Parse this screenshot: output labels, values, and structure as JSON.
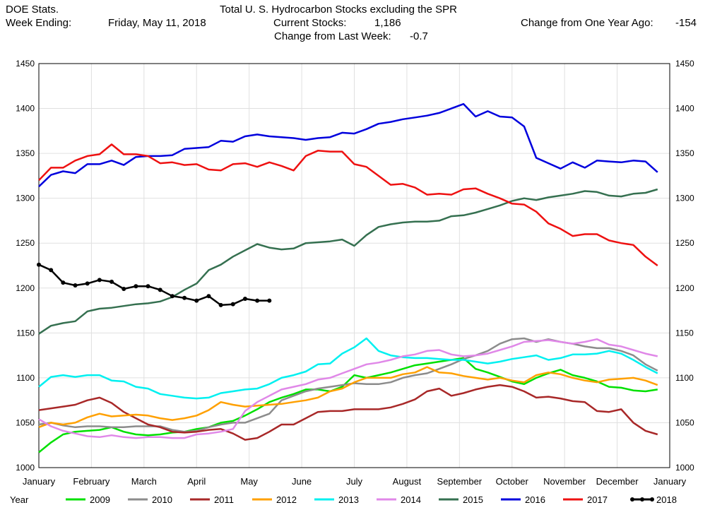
{
  "header": {
    "source": "DOE Stats.",
    "week_label": "Week Ending:",
    "week_value": "Friday, May 11, 2018",
    "title": "Total U. S. Hydrocarbon Stocks excluding the SPR",
    "current_label": "Current Stocks:",
    "current_value": "1,186",
    "yoy_label": "Change from One Year Ago:",
    "yoy_value": "-154",
    "wow_label": "Change from Last Week:",
    "wow_value": "-0.7"
  },
  "legend_title": "Year",
  "chart_data": {
    "type": "line",
    "ylim": [
      1000,
      1450
    ],
    "yticks": [
      1000,
      1050,
      1100,
      1150,
      1200,
      1250,
      1300,
      1350,
      1400,
      1450
    ],
    "xlim": [
      0,
      52
    ],
    "months": [
      "January",
      "February",
      "March",
      "April",
      "May",
      "June",
      "July",
      "August",
      "September",
      "October",
      "November",
      "December",
      "January"
    ],
    "grid": true,
    "legend_position": "bottom",
    "series": [
      {
        "name": "2009",
        "color": "#00e000",
        "markers": false,
        "x": [
          0,
          1,
          2,
          3,
          4,
          5,
          6,
          7,
          8,
          9,
          10,
          11,
          12,
          13,
          14,
          15,
          16,
          17,
          18,
          19,
          20,
          21,
          22,
          23,
          24,
          25,
          26,
          27,
          28,
          29,
          30,
          31,
          32,
          33,
          34,
          35,
          36,
          37,
          38,
          39,
          40,
          41,
          42,
          43,
          44,
          45,
          46,
          47,
          48,
          49,
          50,
          51
        ],
        "values": [
          1017,
          1028,
          1037,
          1040,
          1041,
          1042,
          1045,
          1040,
          1037,
          1036,
          1037,
          1039,
          1040,
          1043,
          1045,
          1050,
          1052,
          1058,
          1065,
          1073,
          1078,
          1082,
          1087,
          1087,
          1085,
          1090,
          1103,
          1100,
          1103,
          1106,
          1110,
          1114,
          1116,
          1118,
          1120,
          1122,
          1110,
          1106,
          1101,
          1096,
          1093,
          1100,
          1105,
          1109,
          1103,
          1100,
          1096,
          1090,
          1089,
          1086,
          1085,
          1087
        ]
      },
      {
        "name": "2010",
        "color": "#8c8c8c",
        "markers": false,
        "x": [
          0,
          1,
          2,
          3,
          4,
          5,
          6,
          7,
          8,
          9,
          10,
          11,
          12,
          13,
          14,
          15,
          16,
          17,
          18,
          19,
          20,
          21,
          22,
          23,
          24,
          25,
          26,
          27,
          28,
          29,
          30,
          31,
          32,
          33,
          34,
          35,
          36,
          37,
          38,
          39,
          40,
          41,
          42,
          43,
          44,
          45,
          46,
          47,
          48,
          49,
          50,
          51
        ],
        "values": [
          1048,
          1050,
          1047,
          1045,
          1046,
          1046,
          1045,
          1045,
          1046,
          1046,
          1046,
          1042,
          1040,
          1041,
          1045,
          1048,
          1050,
          1050,
          1055,
          1060,
          1075,
          1080,
          1085,
          1088,
          1090,
          1092,
          1094,
          1093,
          1093,
          1095,
          1100,
          1103,
          1105,
          1110,
          1115,
          1121,
          1125,
          1130,
          1138,
          1143,
          1144,
          1140,
          1143,
          1140,
          1138,
          1135,
          1133,
          1133,
          1130,
          1125,
          1115,
          1108
        ]
      },
      {
        "name": "2011",
        "color": "#a82828",
        "markers": false,
        "x": [
          0,
          1,
          2,
          3,
          4,
          5,
          6,
          7,
          8,
          9,
          10,
          11,
          12,
          13,
          14,
          15,
          16,
          17,
          18,
          19,
          20,
          21,
          22,
          23,
          24,
          25,
          26,
          27,
          28,
          29,
          30,
          31,
          32,
          33,
          34,
          35,
          36,
          37,
          38,
          39,
          40,
          41,
          42,
          43,
          44,
          45,
          46,
          47,
          48,
          49,
          50,
          51
        ],
        "values": [
          1064,
          1066,
          1068,
          1070,
          1075,
          1078,
          1072,
          1062,
          1055,
          1048,
          1045,
          1040,
          1039,
          1040,
          1042,
          1043,
          1038,
          1031,
          1033,
          1040,
          1048,
          1048,
          1055,
          1062,
          1063,
          1063,
          1065,
          1065,
          1065,
          1067,
          1071,
          1076,
          1085,
          1088,
          1080,
          1083,
          1087,
          1090,
          1092,
          1090,
          1085,
          1078,
          1079,
          1077,
          1074,
          1073,
          1063,
          1062,
          1065,
          1050,
          1041,
          1037
        ]
      },
      {
        "name": "2012",
        "color": "#ffa000",
        "markers": false,
        "x": [
          0,
          1,
          2,
          3,
          4,
          5,
          6,
          7,
          8,
          9,
          10,
          11,
          12,
          13,
          14,
          15,
          16,
          17,
          18,
          19,
          20,
          21,
          22,
          23,
          24,
          25,
          26,
          27,
          28,
          29,
          30,
          31,
          32,
          33,
          34,
          35,
          36,
          37,
          38,
          39,
          40,
          41,
          42,
          43,
          44,
          45,
          46,
          47,
          48,
          49,
          50,
          51
        ],
        "values": [
          1045,
          1050,
          1048,
          1050,
          1056,
          1060,
          1057,
          1058,
          1059,
          1058,
          1055,
          1053,
          1055,
          1058,
          1064,
          1073,
          1070,
          1068,
          1069,
          1070,
          1071,
          1073,
          1075,
          1078,
          1085,
          1088,
          1095,
          1100,
          1100,
          1100,
          1104,
          1106,
          1112,
          1106,
          1105,
          1102,
          1100,
          1098,
          1100,
          1097,
          1095,
          1103,
          1106,
          1104,
          1100,
          1097,
          1095,
          1098,
          1099,
          1100,
          1097,
          1092
        ]
      },
      {
        "name": "2013",
        "color": "#00f0f0",
        "markers": false,
        "x": [
          0,
          1,
          2,
          3,
          4,
          5,
          6,
          7,
          8,
          9,
          10,
          11,
          12,
          13,
          14,
          15,
          16,
          17,
          18,
          19,
          20,
          21,
          22,
          23,
          24,
          25,
          26,
          27,
          28,
          29,
          30,
          31,
          32,
          33,
          34,
          35,
          36,
          37,
          38,
          39,
          40,
          41,
          42,
          43,
          44,
          45,
          46,
          47,
          48,
          49,
          50,
          51
        ],
        "values": [
          1090,
          1101,
          1103,
          1101,
          1103,
          1103,
          1097,
          1096,
          1090,
          1088,
          1082,
          1080,
          1078,
          1077,
          1078,
          1083,
          1085,
          1087,
          1088,
          1093,
          1100,
          1103,
          1107,
          1115,
          1116,
          1127,
          1134,
          1144,
          1130,
          1125,
          1123,
          1122,
          1122,
          1121,
          1120,
          1120,
          1118,
          1116,
          1118,
          1121,
          1123,
          1125,
          1120,
          1122,
          1126,
          1126,
          1127,
          1130,
          1127,
          1120,
          1112,
          1105
        ]
      },
      {
        "name": "2014",
        "color": "#e088e8",
        "markers": false,
        "x": [
          0,
          1,
          2,
          3,
          4,
          5,
          6,
          7,
          8,
          9,
          10,
          11,
          12,
          13,
          14,
          15,
          16,
          17,
          18,
          19,
          20,
          21,
          22,
          23,
          24,
          25,
          26,
          27,
          28,
          29,
          30,
          31,
          32,
          33,
          34,
          35,
          36,
          37,
          38,
          39,
          40,
          41,
          42,
          43,
          44,
          45,
          46,
          47,
          48,
          49,
          50,
          51
        ],
        "values": [
          1054,
          1046,
          1041,
          1038,
          1035,
          1034,
          1036,
          1034,
          1033,
          1034,
          1034,
          1033,
          1033,
          1037,
          1038,
          1040,
          1043,
          1063,
          1073,
          1080,
          1087,
          1090,
          1093,
          1098,
          1100,
          1105,
          1110,
          1115,
          1117,
          1120,
          1124,
          1126,
          1130,
          1131,
          1126,
          1124,
          1125,
          1127,
          1131,
          1135,
          1140,
          1141,
          1142,
          1140,
          1138,
          1140,
          1143,
          1137,
          1135,
          1131,
          1127,
          1124
        ]
      },
      {
        "name": "2015",
        "color": "#357050",
        "markers": false,
        "x": [
          0,
          1,
          2,
          3,
          4,
          5,
          6,
          7,
          8,
          9,
          10,
          11,
          12,
          13,
          14,
          15,
          16,
          17,
          18,
          19,
          20,
          21,
          22,
          23,
          24,
          25,
          26,
          27,
          28,
          29,
          30,
          31,
          32,
          33,
          34,
          35,
          36,
          37,
          38,
          39,
          40,
          41,
          42,
          43,
          44,
          45,
          46,
          47,
          48,
          49,
          50,
          51
        ],
        "values": [
          1149,
          1158,
          1161,
          1163,
          1174,
          1177,
          1178,
          1180,
          1182,
          1183,
          1185,
          1190,
          1198,
          1205,
          1220,
          1226,
          1235,
          1242,
          1249,
          1245,
          1243,
          1244,
          1250,
          1251,
          1252,
          1254,
          1247,
          1259,
          1268,
          1271,
          1273,
          1274,
          1274,
          1275,
          1280,
          1281,
          1284,
          1288,
          1292,
          1297,
          1300,
          1298,
          1301,
          1303,
          1305,
          1308,
          1307,
          1303,
          1302,
          1305,
          1306,
          1310
        ]
      },
      {
        "name": "2016",
        "color": "#0000dd",
        "markers": false,
        "x": [
          0,
          1,
          2,
          3,
          4,
          5,
          6,
          7,
          8,
          9,
          10,
          11,
          12,
          13,
          14,
          15,
          16,
          17,
          18,
          19,
          20,
          21,
          22,
          23,
          24,
          25,
          26,
          27,
          28,
          29,
          30,
          31,
          32,
          33,
          34,
          35,
          36,
          37,
          38,
          39,
          40,
          41,
          42,
          43,
          44,
          45,
          46,
          47,
          48,
          49,
          50,
          51
        ],
        "values": [
          1313,
          1326,
          1330,
          1328,
          1338,
          1338,
          1342,
          1337,
          1346,
          1347,
          1347,
          1348,
          1355,
          1356,
          1357,
          1364,
          1363,
          1369,
          1371,
          1369,
          1368,
          1367,
          1365,
          1367,
          1368,
          1373,
          1372,
          1377,
          1383,
          1385,
          1388,
          1390,
          1392,
          1395,
          1400,
          1405,
          1391,
          1397,
          1391,
          1390,
          1380,
          1345,
          1339,
          1333,
          1340,
          1334,
          1342,
          1341,
          1340,
          1342,
          1341,
          1329
        ]
      },
      {
        "name": "2017",
        "color": "#ee1111",
        "markers": false,
        "x": [
          0,
          1,
          2,
          3,
          4,
          5,
          6,
          7,
          8,
          9,
          10,
          11,
          12,
          13,
          14,
          15,
          16,
          17,
          18,
          19,
          20,
          21,
          22,
          23,
          24,
          25,
          26,
          27,
          28,
          29,
          30,
          31,
          32,
          33,
          34,
          35,
          36,
          37,
          38,
          39,
          40,
          41,
          42,
          43,
          44,
          45,
          46,
          47,
          48,
          49,
          50,
          51
        ],
        "values": [
          1320,
          1334,
          1334,
          1342,
          1347,
          1349,
          1360,
          1349,
          1349,
          1347,
          1339,
          1340,
          1337,
          1338,
          1332,
          1331,
          1338,
          1339,
          1335,
          1340,
          1336,
          1331,
          1347,
          1353,
          1352,
          1352,
          1338,
          1335,
          1325,
          1315,
          1316,
          1312,
          1304,
          1305,
          1304,
          1310,
          1311,
          1305,
          1300,
          1294,
          1293,
          1285,
          1272,
          1266,
          1258,
          1260,
          1260,
          1253,
          1250,
          1248,
          1235,
          1225
        ]
      },
      {
        "name": "2018",
        "color": "#000000",
        "markers": true,
        "x": [
          0,
          1,
          2,
          3,
          4,
          5,
          6,
          7,
          8,
          9,
          10,
          11,
          12,
          13,
          14,
          15,
          16,
          17,
          18,
          19
        ],
        "values": [
          1226,
          1220,
          1206,
          1203,
          1205,
          1209,
          1207,
          1199,
          1202,
          1202,
          1198,
          1191,
          1189,
          1186,
          1191,
          1181,
          1182,
          1188,
          1186,
          1186
        ]
      }
    ]
  }
}
